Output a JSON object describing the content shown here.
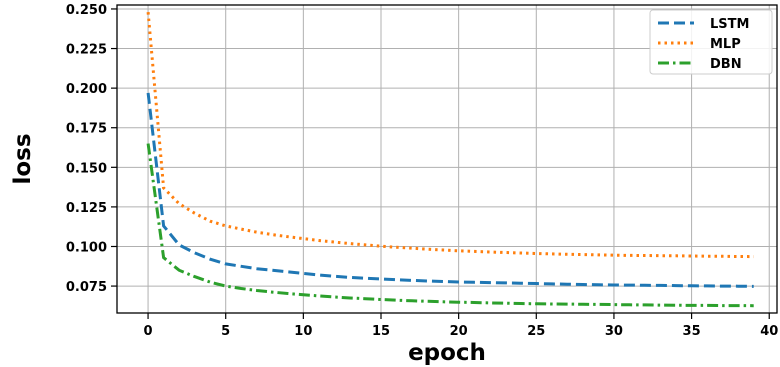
{
  "chart_data": {
    "type": "line",
    "title": "",
    "xlabel": "epoch",
    "ylabel": "loss",
    "xlim": [
      -2,
      40.5
    ],
    "ylim": [
      0.058,
      0.2525
    ],
    "xticks": [
      0,
      5,
      10,
      15,
      20,
      25,
      30,
      35,
      40
    ],
    "xtick_labels": [
      "0",
      "5",
      "10",
      "15",
      "20",
      "25",
      "30",
      "35",
      "40"
    ],
    "yticks": [
      0.075,
      0.1,
      0.125,
      0.15,
      0.175,
      0.2,
      0.225,
      0.25
    ],
    "ytick_labels": [
      "0.075",
      "0.100",
      "0.125",
      "0.150",
      "0.175",
      "0.200",
      "0.225",
      "0.250"
    ],
    "grid": true,
    "legend_position": "top-right",
    "x": [
      0,
      1,
      2,
      3,
      4,
      5,
      6,
      7,
      8,
      9,
      10,
      11,
      12,
      13,
      14,
      15,
      16,
      17,
      18,
      19,
      20,
      21,
      22,
      23,
      24,
      25,
      26,
      27,
      28,
      29,
      30,
      31,
      32,
      33,
      34,
      35,
      36,
      37,
      38,
      39
    ],
    "series": [
      {
        "name": "LSTM",
        "color": "#1f77b4",
        "dash": "dashed",
        "values": [
          0.197,
          0.113,
          0.101,
          0.096,
          0.092,
          0.089,
          0.0875,
          0.086,
          0.085,
          0.084,
          0.083,
          0.082,
          0.0812,
          0.0805,
          0.08,
          0.0795,
          0.079,
          0.0786,
          0.0782,
          0.0779,
          0.0776,
          0.0774,
          0.0772,
          0.077,
          0.0768,
          0.0766,
          0.0764,
          0.0762,
          0.076,
          0.0758,
          0.0757,
          0.0756,
          0.0755,
          0.0754,
          0.0753,
          0.0752,
          0.0751,
          0.075,
          0.0749,
          0.0748
        ]
      },
      {
        "name": "MLP",
        "color": "#ff7f0e",
        "dash": "dotted",
        "values": [
          0.248,
          0.137,
          0.127,
          0.121,
          0.116,
          0.113,
          0.111,
          0.109,
          0.1075,
          0.1062,
          0.105,
          0.1038,
          0.1028,
          0.1018,
          0.101,
          0.1002,
          0.0995,
          0.0989,
          0.0983,
          0.0978,
          0.0973,
          0.0969,
          0.0965,
          0.0962,
          0.0959,
          0.0956,
          0.0953,
          0.0951,
          0.0949,
          0.0947,
          0.0945,
          0.0944,
          0.0943,
          0.0942,
          0.0941,
          0.094,
          0.0939,
          0.0938,
          0.0937,
          0.0936
        ]
      },
      {
        "name": "DBN",
        "color": "#2ca02c",
        "dash": "dashdot",
        "values": [
          0.165,
          0.093,
          0.085,
          0.081,
          0.0775,
          0.075,
          0.0735,
          0.0722,
          0.0712,
          0.0703,
          0.0695,
          0.0688,
          0.0681,
          0.0675,
          0.067,
          0.0665,
          0.0661,
          0.0657,
          0.0654,
          0.0651,
          0.0648,
          0.0646,
          0.0644,
          0.0642,
          0.064,
          0.0638,
          0.0637,
          0.0636,
          0.0635,
          0.0634,
          0.0633,
          0.0632,
          0.0631,
          0.063,
          0.0629,
          0.0628,
          0.0628,
          0.0627,
          0.0627,
          0.0626
        ]
      }
    ]
  }
}
